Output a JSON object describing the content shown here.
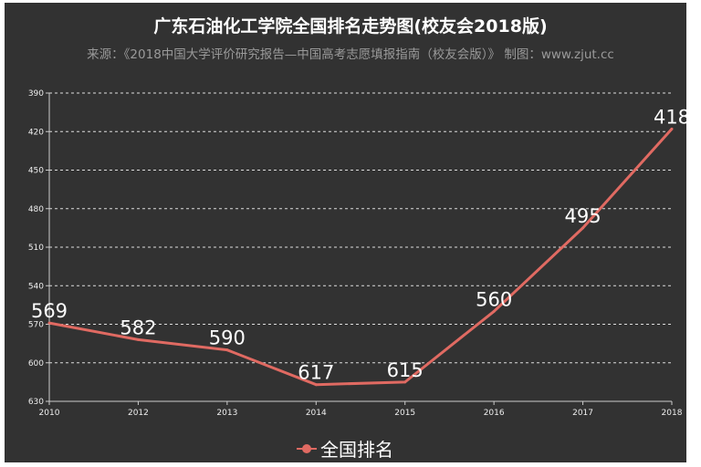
{
  "chart_data": {
    "type": "line",
    "title": "广东石油化工学院全国排名走势图(校友会2018版)",
    "subtitle": "来源：《2018中国大学评价研究报告—中国高考志愿填报指南（校友会版）》 制图：www.zjut.cc",
    "categories": [
      "2010",
      "2012",
      "2013",
      "2014",
      "2015",
      "2016",
      "2017",
      "2018"
    ],
    "series": [
      {
        "name": "全国排名",
        "values": [
          569,
          582,
          590,
          617,
          615,
          560,
          495,
          418
        ],
        "color": "#e06a62"
      }
    ],
    "ylim": [
      390,
      630
    ],
    "y_inverted": true,
    "yticks": [
      390,
      420,
      450,
      480,
      510,
      540,
      570,
      600,
      630
    ],
    "grid": true,
    "legend_position": "bottom"
  }
}
